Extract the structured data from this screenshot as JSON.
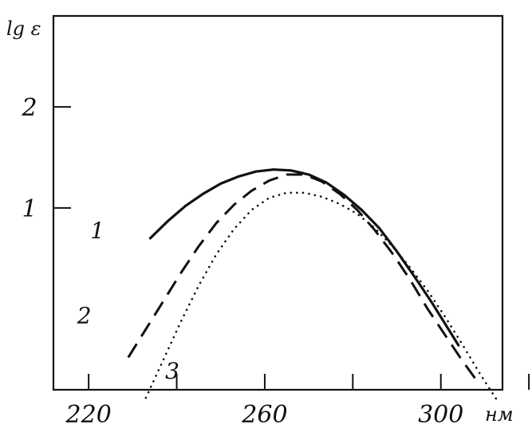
{
  "chart_data": {
    "type": "line",
    "title": "",
    "ylabel": "lg ε",
    "xlabel": "",
    "x_unit": "нм",
    "xlim": [
      212,
      314
    ],
    "ylim": [
      -0.8,
      2.9
    ],
    "x_ticks": [
      {
        "value": 220,
        "label": "220"
      },
      {
        "value": 260,
        "label": "260"
      },
      {
        "value": 300,
        "label": "300"
      }
    ],
    "x_minor_ticks": [
      240,
      280,
      320
    ],
    "y_ticks": [
      {
        "value": 1,
        "label": "1"
      },
      {
        "value": 2,
        "label": "2"
      }
    ],
    "grid": false,
    "legend": "none",
    "series": [
      {
        "label": "1",
        "style": "solid",
        "label_at": [
          222,
          0.7
        ],
        "points": [
          [
            234,
            0.7
          ],
          [
            238,
            0.87
          ],
          [
            242,
            1.02
          ],
          [
            246,
            1.14
          ],
          [
            250,
            1.24
          ],
          [
            254,
            1.31
          ],
          [
            258,
            1.36
          ],
          [
            262,
            1.38
          ],
          [
            266,
            1.37
          ],
          [
            270,
            1.33
          ],
          [
            274,
            1.25
          ],
          [
            278,
            1.13
          ],
          [
            282,
            0.98
          ],
          [
            286,
            0.8
          ],
          [
            290,
            0.57
          ],
          [
            294,
            0.32
          ],
          [
            298,
            0.06
          ],
          [
            302,
            -0.22
          ],
          [
            304,
            -0.36
          ]
        ]
      },
      {
        "label": "2",
        "style": "dashed",
        "label_at": [
          219,
          -0.14
        ],
        "points": [
          [
            229,
            -0.48
          ],
          [
            233,
            -0.2
          ],
          [
            237,
            0.08
          ],
          [
            241,
            0.36
          ],
          [
            245,
            0.62
          ],
          [
            249,
            0.85
          ],
          [
            253,
            1.03
          ],
          [
            257,
            1.17
          ],
          [
            261,
            1.27
          ],
          [
            265,
            1.33
          ],
          [
            269,
            1.33
          ],
          [
            273,
            1.26
          ],
          [
            277,
            1.14
          ],
          [
            281,
            0.98
          ],
          [
            285,
            0.78
          ],
          [
            289,
            0.55
          ],
          [
            293,
            0.29
          ],
          [
            297,
            0.0
          ],
          [
            301,
            -0.26
          ],
          [
            305,
            -0.52
          ],
          [
            308,
            -0.7
          ]
        ]
      },
      {
        "label": "3",
        "style": "dotted",
        "label_at": [
          239,
          -0.69
        ],
        "points": [
          [
            233,
            -0.88
          ],
          [
            237,
            -0.5
          ],
          [
            241,
            -0.12
          ],
          [
            245,
            0.23
          ],
          [
            249,
            0.54
          ],
          [
            253,
            0.79
          ],
          [
            257,
            0.98
          ],
          [
            261,
            1.1
          ],
          [
            265,
            1.15
          ],
          [
            269,
            1.15
          ],
          [
            273,
            1.11
          ],
          [
            277,
            1.04
          ],
          [
            281,
            0.94
          ],
          [
            285,
            0.8
          ],
          [
            289,
            0.62
          ],
          [
            293,
            0.41
          ],
          [
            297,
            0.18
          ],
          [
            301,
            -0.08
          ],
          [
            305,
            -0.36
          ],
          [
            309,
            -0.65
          ],
          [
            313,
            -0.92
          ]
        ]
      }
    ]
  }
}
